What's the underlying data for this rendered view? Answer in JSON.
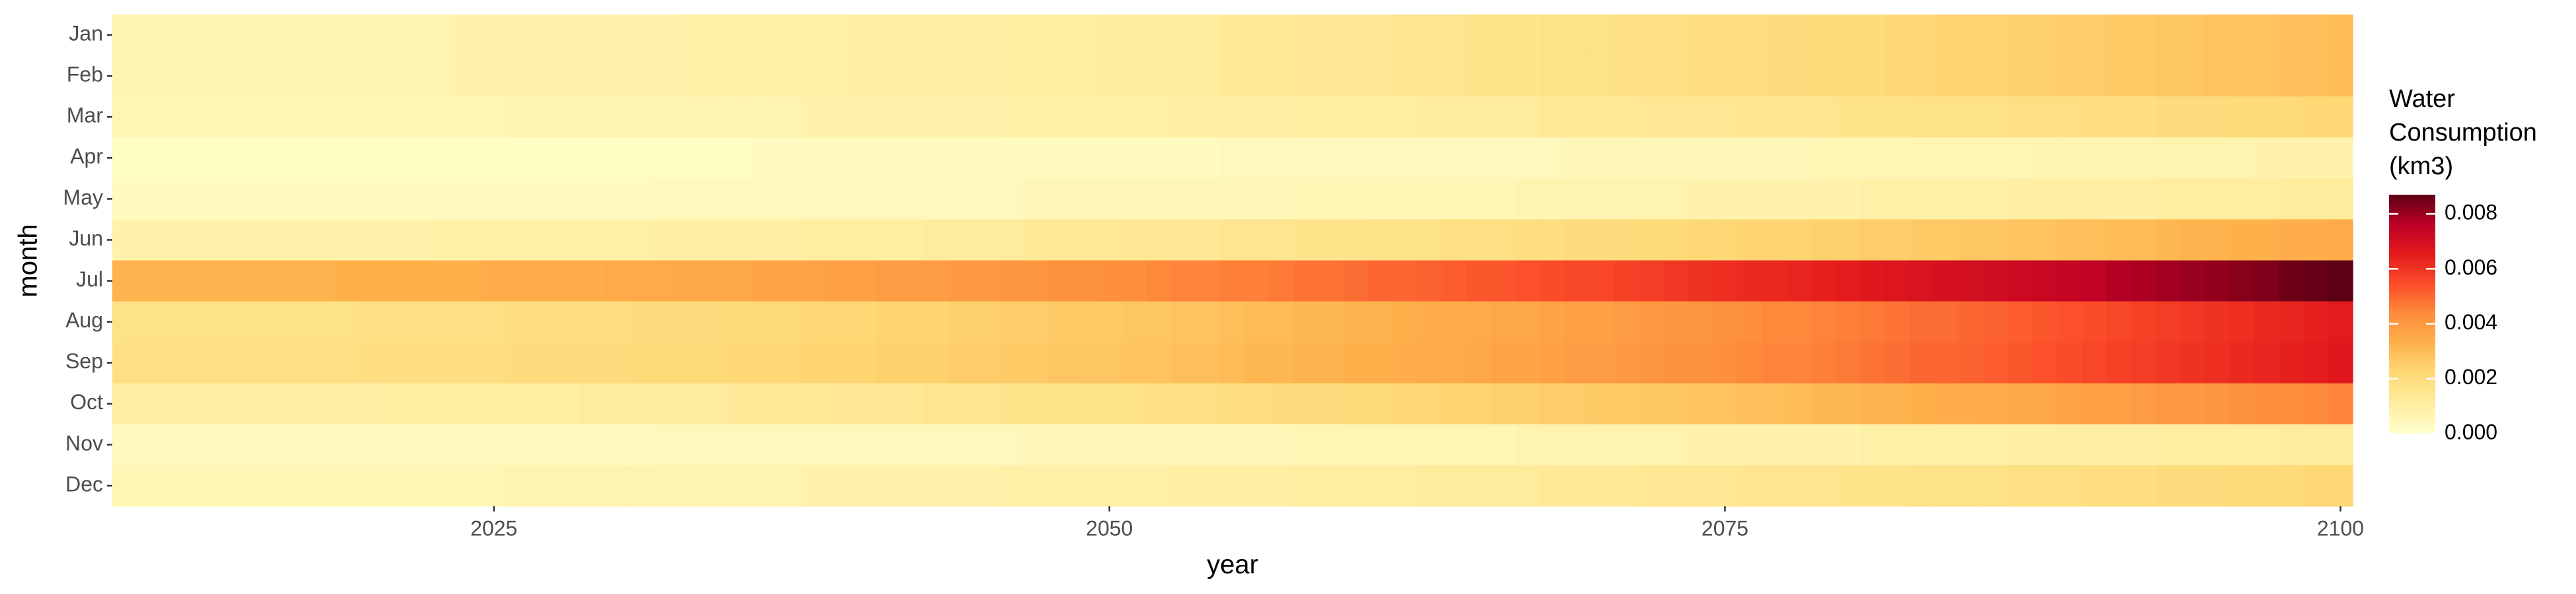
{
  "chart_data": {
    "type": "heatmap",
    "x_label": "year",
    "y_label": "month",
    "legend_title": [
      "Water",
      "Consumption",
      "(km3)"
    ],
    "x": [
      2010,
      2011,
      2012,
      2013,
      2014,
      2015,
      2016,
      2017,
      2018,
      2019,
      2020,
      2021,
      2022,
      2023,
      2024,
      2025,
      2026,
      2027,
      2028,
      2029,
      2030,
      2031,
      2032,
      2033,
      2034,
      2035,
      2036,
      2037,
      2038,
      2039,
      2040,
      2041,
      2042,
      2043,
      2044,
      2045,
      2046,
      2047,
      2048,
      2049,
      2050,
      2051,
      2052,
      2053,
      2054,
      2055,
      2056,
      2057,
      2058,
      2059,
      2060,
      2061,
      2062,
      2063,
      2064,
      2065,
      2066,
      2067,
      2068,
      2069,
      2070,
      2071,
      2072,
      2073,
      2074,
      2075,
      2076,
      2077,
      2078,
      2079,
      2080,
      2081,
      2082,
      2083,
      2084,
      2085,
      2086,
      2087,
      2088,
      2089,
      2090,
      2091,
      2092,
      2093,
      2094,
      2095,
      2096,
      2097,
      2098,
      2099,
      2100
    ],
    "xlim": [
      2009.5,
      2100.5
    ],
    "xticks": [
      2025,
      2050,
      2075,
      2100
    ],
    "categories": [
      "Jan",
      "Feb",
      "Mar",
      "Apr",
      "May",
      "Jun",
      "Jul",
      "Aug",
      "Sep",
      "Oct",
      "Nov",
      "Dec"
    ],
    "z": [
      [
        0.0007,
        0.0007,
        0.0007,
        0.0007,
        0.0007,
        0.0007,
        0.0007,
        0.0007,
        0.0007,
        0.0007,
        0.0007,
        0.0007,
        0.0007,
        0.0007,
        0.0008,
        0.0008,
        0.0008,
        0.0008,
        0.0008,
        0.0008,
        0.0008,
        0.0008,
        0.0008,
        0.0009,
        0.0009,
        0.0009,
        0.0009,
        0.0009,
        0.0009,
        0.0009,
        0.001,
        0.001,
        0.001,
        0.001,
        0.001,
        0.001,
        0.0011,
        0.0011,
        0.0011,
        0.0011,
        0.0012,
        0.0012,
        0.0012,
        0.0012,
        0.0012,
        0.0013,
        0.0013,
        0.0013,
        0.0014,
        0.0014,
        0.0014,
        0.0014,
        0.0015,
        0.0015,
        0.0015,
        0.0016,
        0.0016,
        0.0016,
        0.0017,
        0.0017,
        0.0017,
        0.0018,
        0.0018,
        0.0018,
        0.0019,
        0.0019,
        0.0019,
        0.002,
        0.002,
        0.0021,
        0.0021,
        0.0021,
        0.0022,
        0.0022,
        0.0023,
        0.0023,
        0.0023,
        0.0024,
        0.0024,
        0.0025,
        0.0025,
        0.0026,
        0.0026,
        0.0027,
        0.0027,
        0.0028,
        0.0028,
        0.0028,
        0.0029,
        0.0029,
        0.003
      ],
      [
        0.0007,
        0.0007,
        0.0007,
        0.0007,
        0.0007,
        0.0007,
        0.0007,
        0.0007,
        0.0007,
        0.0007,
        0.0007,
        0.0007,
        0.0007,
        0.0007,
        0.0008,
        0.0008,
        0.0008,
        0.0008,
        0.0008,
        0.0008,
        0.0008,
        0.0008,
        0.0008,
        0.0009,
        0.0009,
        0.0009,
        0.0009,
        0.0009,
        0.0009,
        0.0009,
        0.001,
        0.001,
        0.001,
        0.001,
        0.001,
        0.001,
        0.0011,
        0.0011,
        0.0011,
        0.0011,
        0.0012,
        0.0012,
        0.0012,
        0.0012,
        0.0012,
        0.0013,
        0.0013,
        0.0013,
        0.0014,
        0.0014,
        0.0014,
        0.0014,
        0.0015,
        0.0015,
        0.0015,
        0.0016,
        0.0016,
        0.0016,
        0.0017,
        0.0017,
        0.0017,
        0.0018,
        0.0018,
        0.0018,
        0.0019,
        0.0019,
        0.0019,
        0.002,
        0.002,
        0.0021,
        0.0021,
        0.0021,
        0.0022,
        0.0022,
        0.0023,
        0.0023,
        0.0023,
        0.0024,
        0.0024,
        0.0025,
        0.0025,
        0.0026,
        0.0026,
        0.0027,
        0.0027,
        0.0028,
        0.0028,
        0.0028,
        0.0029,
        0.0029,
        0.003
      ],
      [
        0.0006,
        0.0006,
        0.0006,
        0.0006,
        0.0006,
        0.0006,
        0.0006,
        0.0006,
        0.0006,
        0.0006,
        0.0006,
        0.0006,
        0.0006,
        0.0006,
        0.0006,
        0.0006,
        0.0007,
        0.0007,
        0.0007,
        0.0007,
        0.0007,
        0.0007,
        0.0007,
        0.0007,
        0.0007,
        0.0007,
        0.0007,
        0.0007,
        0.0008,
        0.0008,
        0.0008,
        0.0008,
        0.0008,
        0.0008,
        0.0008,
        0.0008,
        0.0009,
        0.0009,
        0.0009,
        0.0009,
        0.0009,
        0.0009,
        0.0009,
        0.001,
        0.001,
        0.001,
        0.001,
        0.001,
        0.0011,
        0.0011,
        0.0011,
        0.0011,
        0.0011,
        0.0012,
        0.0012,
        0.0012,
        0.0012,
        0.0012,
        0.0013,
        0.0013,
        0.0013,
        0.0013,
        0.0014,
        0.0014,
        0.0014,
        0.0014,
        0.0015,
        0.0015,
        0.0015,
        0.0015,
        0.0016,
        0.0016,
        0.0016,
        0.0017,
        0.0017,
        0.0017,
        0.0017,
        0.0018,
        0.0018,
        0.0018,
        0.0019,
        0.0019,
        0.0019,
        0.002,
        0.002,
        0.002,
        0.0021,
        0.0021,
        0.0021,
        0.0022,
        0.0022
      ],
      [
        0.0002,
        0.0002,
        0.0002,
        0.0002,
        0.0002,
        0.0002,
        0.0002,
        0.0002,
        0.0002,
        0.0002,
        0.0002,
        0.0002,
        0.0002,
        0.0002,
        0.0002,
        0.0002,
        0.0002,
        0.0002,
        0.0002,
        0.0002,
        0.0002,
        0.0002,
        0.0002,
        0.0002,
        0.0002,
        0.0002,
        0.0003,
        0.0003,
        0.0003,
        0.0003,
        0.0003,
        0.0003,
        0.0003,
        0.0003,
        0.0003,
        0.0003,
        0.0003,
        0.0003,
        0.0003,
        0.0003,
        0.0003,
        0.0003,
        0.0003,
        0.0003,
        0.0003,
        0.0004,
        0.0004,
        0.0004,
        0.0004,
        0.0004,
        0.0004,
        0.0004,
        0.0004,
        0.0004,
        0.0004,
        0.0004,
        0.0004,
        0.0004,
        0.0004,
        0.0005,
        0.0005,
        0.0005,
        0.0005,
        0.0005,
        0.0005,
        0.0005,
        0.0005,
        0.0005,
        0.0005,
        0.0006,
        0.0006,
        0.0006,
        0.0006,
        0.0006,
        0.0006,
        0.0006,
        0.0006,
        0.0006,
        0.0007,
        0.0007,
        0.0007,
        0.0007,
        0.0007,
        0.0007,
        0.0007,
        0.0007,
        0.0007,
        0.0008,
        0.0008,
        0.0008,
        0.0008
      ],
      [
        0.0003,
        0.0003,
        0.0003,
        0.0003,
        0.0003,
        0.0003,
        0.0003,
        0.0003,
        0.0003,
        0.0003,
        0.0003,
        0.0003,
        0.0003,
        0.0003,
        0.0003,
        0.0003,
        0.0003,
        0.0003,
        0.0003,
        0.0003,
        0.0003,
        0.0003,
        0.0004,
        0.0004,
        0.0004,
        0.0004,
        0.0004,
        0.0004,
        0.0004,
        0.0004,
        0.0004,
        0.0004,
        0.0004,
        0.0004,
        0.0004,
        0.0004,
        0.0004,
        0.0005,
        0.0005,
        0.0005,
        0.0005,
        0.0005,
        0.0005,
        0.0005,
        0.0005,
        0.0005,
        0.0005,
        0.0005,
        0.0006,
        0.0006,
        0.0006,
        0.0006,
        0.0006,
        0.0006,
        0.0006,
        0.0006,
        0.0006,
        0.0007,
        0.0007,
        0.0007,
        0.0007,
        0.0007,
        0.0007,
        0.0007,
        0.0008,
        0.0008,
        0.0008,
        0.0008,
        0.0008,
        0.0008,
        0.0008,
        0.0009,
        0.0009,
        0.0009,
        0.0009,
        0.0009,
        0.0009,
        0.001,
        0.001,
        0.001,
        0.001,
        0.001,
        0.001,
        0.0011,
        0.0011,
        0.0011,
        0.0011,
        0.0011,
        0.0012,
        0.0012,
        0.0012
      ],
      [
        0.0008,
        0.0008,
        0.0008,
        0.0008,
        0.0008,
        0.0008,
        0.0008,
        0.0008,
        0.0008,
        0.0008,
        0.0008,
        0.0008,
        0.0008,
        0.0009,
        0.0009,
        0.0009,
        0.0009,
        0.0009,
        0.0009,
        0.0009,
        0.0009,
        0.0009,
        0.001,
        0.001,
        0.001,
        0.001,
        0.001,
        0.001,
        0.0011,
        0.0011,
        0.0011,
        0.0011,
        0.0011,
        0.0012,
        0.0012,
        0.0012,
        0.0012,
        0.0013,
        0.0013,
        0.0013,
        0.0013,
        0.0014,
        0.0014,
        0.0014,
        0.0014,
        0.0015,
        0.0015,
        0.0015,
        0.0016,
        0.0016,
        0.0016,
        0.0017,
        0.0017,
        0.0017,
        0.0018,
        0.0018,
        0.0018,
        0.0019,
        0.0019,
        0.002,
        0.002,
        0.002,
        0.0021,
        0.0021,
        0.0022,
        0.0022,
        0.0023,
        0.0023,
        0.0023,
        0.0024,
        0.0024,
        0.0025,
        0.0025,
        0.0026,
        0.0026,
        0.0027,
        0.0027,
        0.0028,
        0.0028,
        0.0029,
        0.0029,
        0.003,
        0.003,
        0.0031,
        0.0032,
        0.0032,
        0.0033,
        0.0033,
        0.0034,
        0.0034,
        0.0035
      ],
      [
        0.0032,
        0.0032,
        0.0032,
        0.0032,
        0.0032,
        0.0032,
        0.0032,
        0.0032,
        0.0032,
        0.0033,
        0.0033,
        0.0033,
        0.0033,
        0.0033,
        0.0033,
        0.0034,
        0.0034,
        0.0034,
        0.0034,
        0.0034,
        0.0035,
        0.0035,
        0.0035,
        0.0036,
        0.0036,
        0.0036,
        0.0037,
        0.0037,
        0.0037,
        0.0038,
        0.0038,
        0.0039,
        0.0039,
        0.0039,
        0.004,
        0.004,
        0.0041,
        0.0041,
        0.0042,
        0.0042,
        0.0043,
        0.0043,
        0.0044,
        0.0045,
        0.0045,
        0.0046,
        0.0046,
        0.0047,
        0.0048,
        0.0048,
        0.0049,
        0.005,
        0.005,
        0.0051,
        0.0052,
        0.0053,
        0.0053,
        0.0054,
        0.0055,
        0.0056,
        0.0056,
        0.0057,
        0.0058,
        0.0059,
        0.006,
        0.0061,
        0.0062,
        0.0062,
        0.0063,
        0.0064,
        0.0065,
        0.0066,
        0.0067,
        0.0068,
        0.0069,
        0.007,
        0.0071,
        0.0072,
        0.0073,
        0.0074,
        0.0075,
        0.0077,
        0.0078,
        0.0079,
        0.008,
        0.0081,
        0.0082,
        0.0083,
        0.0085,
        0.0086,
        0.0087
      ],
      [
        0.0017,
        0.0017,
        0.0017,
        0.0017,
        0.0017,
        0.0017,
        0.0017,
        0.0017,
        0.0017,
        0.0017,
        0.0018,
        0.0018,
        0.0018,
        0.0018,
        0.0018,
        0.0018,
        0.0019,
        0.0019,
        0.0019,
        0.0019,
        0.0019,
        0.002,
        0.002,
        0.002,
        0.002,
        0.0021,
        0.0021,
        0.0021,
        0.0022,
        0.0022,
        0.0022,
        0.0023,
        0.0023,
        0.0023,
        0.0024,
        0.0024,
        0.0025,
        0.0025,
        0.0026,
        0.0026,
        0.0026,
        0.0027,
        0.0027,
        0.0028,
        0.0028,
        0.0029,
        0.003,
        0.003,
        0.0031,
        0.0031,
        0.0032,
        0.0032,
        0.0033,
        0.0034,
        0.0034,
        0.0035,
        0.0036,
        0.0036,
        0.0037,
        0.0038,
        0.0038,
        0.0039,
        0.004,
        0.0041,
        0.0041,
        0.0042,
        0.0043,
        0.0044,
        0.0044,
        0.0045,
        0.0046,
        0.0047,
        0.0048,
        0.0049,
        0.0049,
        0.005,
        0.0051,
        0.0052,
        0.0053,
        0.0054,
        0.0055,
        0.0056,
        0.0057,
        0.0058,
        0.0059,
        0.006,
        0.0061,
        0.0062,
        0.0063,
        0.0064,
        0.0065
      ],
      [
        0.0018,
        0.0018,
        0.0018,
        0.0018,
        0.0018,
        0.0018,
        0.0018,
        0.0018,
        0.0018,
        0.0018,
        0.0019,
        0.0019,
        0.0019,
        0.0019,
        0.0019,
        0.0019,
        0.002,
        0.002,
        0.002,
        0.002,
        0.002,
        0.0021,
        0.0021,
        0.0021,
        0.0021,
        0.0022,
        0.0022,
        0.0022,
        0.0023,
        0.0023,
        0.0023,
        0.0024,
        0.0024,
        0.0024,
        0.0025,
        0.0025,
        0.0026,
        0.0026,
        0.0027,
        0.0027,
        0.0027,
        0.0028,
        0.0028,
        0.0029,
        0.0029,
        0.003,
        0.0031,
        0.0031,
        0.0032,
        0.0032,
        0.0033,
        0.0033,
        0.0034,
        0.0035,
        0.0035,
        0.0036,
        0.0037,
        0.0037,
        0.0038,
        0.0039,
        0.0039,
        0.004,
        0.0041,
        0.0042,
        0.0042,
        0.0043,
        0.0044,
        0.0045,
        0.0045,
        0.0046,
        0.0047,
        0.0048,
        0.0049,
        0.005,
        0.005,
        0.0051,
        0.0052,
        0.0053,
        0.0054,
        0.0055,
        0.0056,
        0.0057,
        0.0058,
        0.0059,
        0.006,
        0.0061,
        0.0062,
        0.0063,
        0.0064,
        0.0065,
        0.0066
      ],
      [
        0.001,
        0.001,
        0.001,
        0.001,
        0.001,
        0.001,
        0.001,
        0.001,
        0.001,
        0.001,
        0.001,
        0.0011,
        0.0011,
        0.0011,
        0.0011,
        0.0011,
        0.0011,
        0.0011,
        0.0011,
        0.0012,
        0.0012,
        0.0012,
        0.0012,
        0.0012,
        0.0012,
        0.0013,
        0.0013,
        0.0013,
        0.0013,
        0.0014,
        0.0014,
        0.0014,
        0.0014,
        0.0015,
        0.0015,
        0.0015,
        0.0016,
        0.0016,
        0.0016,
        0.0017,
        0.0017,
        0.0017,
        0.0018,
        0.0018,
        0.0018,
        0.0019,
        0.0019,
        0.002,
        0.002,
        0.002,
        0.0021,
        0.0021,
        0.0022,
        0.0022,
        0.0023,
        0.0023,
        0.0024,
        0.0024,
        0.0025,
        0.0025,
        0.0026,
        0.0026,
        0.0027,
        0.0027,
        0.0028,
        0.0028,
        0.0029,
        0.0029,
        0.003,
        0.0031,
        0.0031,
        0.0032,
        0.0032,
        0.0033,
        0.0034,
        0.0034,
        0.0035,
        0.0036,
        0.0036,
        0.0037,
        0.0038,
        0.0038,
        0.0039,
        0.004,
        0.004,
        0.0041,
        0.0042,
        0.0043,
        0.0043,
        0.0044,
        0.0045
      ],
      [
        0.0003,
        0.0003,
        0.0003,
        0.0003,
        0.0003,
        0.0003,
        0.0003,
        0.0003,
        0.0003,
        0.0003,
        0.0003,
        0.0003,
        0.0003,
        0.0003,
        0.0003,
        0.0003,
        0.0003,
        0.0003,
        0.0003,
        0.0003,
        0.0003,
        0.0003,
        0.0004,
        0.0004,
        0.0004,
        0.0004,
        0.0004,
        0.0004,
        0.0004,
        0.0004,
        0.0004,
        0.0004,
        0.0004,
        0.0004,
        0.0004,
        0.0004,
        0.0004,
        0.0005,
        0.0005,
        0.0005,
        0.0005,
        0.0005,
        0.0005,
        0.0005,
        0.0005,
        0.0005,
        0.0005,
        0.0005,
        0.0006,
        0.0006,
        0.0006,
        0.0006,
        0.0006,
        0.0006,
        0.0006,
        0.0006,
        0.0006,
        0.0007,
        0.0007,
        0.0007,
        0.0007,
        0.0007,
        0.0007,
        0.0007,
        0.0008,
        0.0008,
        0.0008,
        0.0008,
        0.0008,
        0.0008,
        0.0008,
        0.0009,
        0.0009,
        0.0009,
        0.0009,
        0.0009,
        0.0009,
        0.001,
        0.001,
        0.001,
        0.001,
        0.001,
        0.001,
        0.0011,
        0.0011,
        0.0011,
        0.0011,
        0.0011,
        0.0012,
        0.0012,
        0.0012
      ],
      [
        0.0006,
        0.0006,
        0.0006,
        0.0006,
        0.0006,
        0.0006,
        0.0006,
        0.0006,
        0.0006,
        0.0006,
        0.0006,
        0.0006,
        0.0006,
        0.0006,
        0.0006,
        0.0006,
        0.0007,
        0.0007,
        0.0007,
        0.0007,
        0.0007,
        0.0007,
        0.0007,
        0.0007,
        0.0007,
        0.0007,
        0.0007,
        0.0007,
        0.0008,
        0.0008,
        0.0008,
        0.0008,
        0.0008,
        0.0008,
        0.0008,
        0.0008,
        0.0009,
        0.0009,
        0.0009,
        0.0009,
        0.0009,
        0.0009,
        0.0009,
        0.001,
        0.001,
        0.001,
        0.001,
        0.001,
        0.0011,
        0.0011,
        0.0011,
        0.0011,
        0.0011,
        0.0012,
        0.0012,
        0.0012,
        0.0012,
        0.0012,
        0.0013,
        0.0013,
        0.0013,
        0.0013,
        0.0014,
        0.0014,
        0.0014,
        0.0014,
        0.0015,
        0.0015,
        0.0015,
        0.0015,
        0.0016,
        0.0016,
        0.0016,
        0.0017,
        0.0017,
        0.0017,
        0.0017,
        0.0018,
        0.0018,
        0.0018,
        0.0019,
        0.0019,
        0.0019,
        0.002,
        0.002,
        0.002,
        0.0021,
        0.0021,
        0.0021,
        0.0022,
        0.0022
      ]
    ],
    "colors": [
      "#ffffcc",
      "#ffeda0",
      "#fed976",
      "#feb24c",
      "#fd8d3c",
      "#fc4e2a",
      "#e31a1c",
      "#bd0026",
      "#5c0014"
    ],
    "clim": [
      0,
      0.0087
    ],
    "cticks": [
      {
        "value": 0,
        "label": "0.000"
      },
      {
        "value": 0.002,
        "label": "0.002"
      },
      {
        "value": 0.004,
        "label": "0.004"
      },
      {
        "value": 0.006,
        "label": "0.006"
      },
      {
        "value": 0.008,
        "label": "0.008"
      }
    ]
  }
}
